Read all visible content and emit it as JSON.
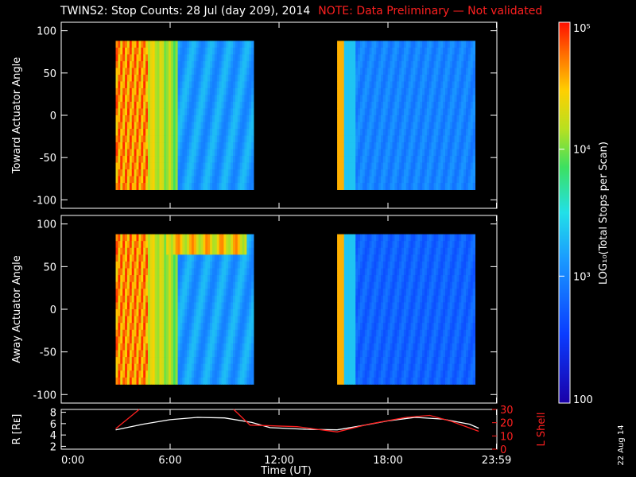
{
  "title": {
    "main": "TWINS2: Stop Counts: 28 Jul (day 209), 2014",
    "note": "NOTE: Data Preliminary — Not validated"
  },
  "panels": {
    "top": {
      "ylabel": "Toward Actuator Angle"
    },
    "middle": {
      "ylabel": "Away Actuator Angle"
    },
    "bottom": {
      "ylabel_left": "R [Rᴇ]",
      "ylabel_right": "L Shell"
    }
  },
  "colorbar": {
    "label": "LOG₁₀(Total Stops per Scan)",
    "tick_labels": [
      "10⁵",
      "10⁴",
      "10³",
      "100"
    ]
  },
  "xaxis": {
    "label": "Time (UT)",
    "tick_labels": [
      "0:00",
      "6:00",
      "12:00",
      "18:00",
      "23:59"
    ]
  },
  "date_stamp": "22 Aug 14",
  "colors": {
    "title": "#ffffff",
    "note": "#ff2020",
    "r_line": "#ffffff",
    "lshell_line": "#ff2020"
  },
  "chart_data": [
    {
      "type": "heatmap",
      "name": "toward",
      "ylabel": "Toward Actuator Angle",
      "ylim": [
        -110,
        110
      ],
      "yticks": [
        100,
        50,
        0,
        -50,
        -100
      ],
      "xlim": [
        0,
        24
      ],
      "x_ticks": [
        "0:00",
        "6:00",
        "12:00",
        "18:00",
        "23:59"
      ],
      "scan_blocks_hours": [
        [
          3.0,
          10.6
        ],
        [
          15.2,
          22.8
        ]
      ],
      "angle_range": [
        -88,
        88
      ],
      "colorbar_log_range": [
        2,
        5
      ]
    },
    {
      "type": "heatmap",
      "name": "away",
      "ylabel": "Away Actuator Angle",
      "ylim": [
        -110,
        110
      ],
      "yticks": [
        100,
        50,
        0,
        -50,
        -100
      ],
      "xlim": [
        0,
        24
      ],
      "x_ticks": [
        "0:00",
        "6:00",
        "12:00",
        "18:00",
        "23:59"
      ],
      "scan_blocks_hours": [
        [
          3.0,
          10.6
        ],
        [
          15.2,
          22.8
        ]
      ],
      "angle_range": [
        -88,
        88
      ],
      "colorbar_log_range": [
        2,
        5
      ]
    },
    {
      "type": "line",
      "name": "ephemeris",
      "xlim": [
        0,
        24
      ],
      "left_axis": {
        "label": "R [Rᴇ]",
        "ylim": [
          1.5,
          8.5
        ],
        "ticks": [
          2,
          4,
          6,
          8
        ]
      },
      "right_axis": {
        "label": "L Shell",
        "ylim": [
          0,
          30
        ],
        "ticks": [
          0,
          10,
          20,
          30
        ]
      },
      "series": [
        {
          "label": "R",
          "axis": "left",
          "points": [
            [
              3.0,
              4.9
            ],
            [
              4.5,
              5.9
            ],
            [
              6.0,
              6.7
            ],
            [
              7.5,
              7.1
            ],
            [
              9.0,
              7.0
            ],
            [
              10.5,
              6.2
            ],
            [
              11.5,
              5.3
            ],
            [
              13.5,
              5.0
            ],
            [
              15.2,
              4.9
            ],
            [
              16.5,
              5.6
            ],
            [
              18.0,
              6.5
            ],
            [
              19.5,
              7.1
            ],
            [
              21.0,
              6.8
            ],
            [
              22.5,
              5.9
            ],
            [
              23.0,
              5.2
            ]
          ]
        },
        {
          "label": "L Shell",
          "axis": "right",
          "points": [
            [
              3.0,
              15.5
            ],
            [
              4.3,
              30.0
            ],
            null,
            [
              9.5,
              30.0
            ],
            [
              10.4,
              18.2
            ],
            [
              13.0,
              17.0
            ],
            [
              15.2,
              13.0
            ],
            [
              17.0,
              19.0
            ],
            [
              19.0,
              24.0
            ],
            [
              20.3,
              25.5
            ],
            [
              21.5,
              21.0
            ],
            [
              23.0,
              13.5
            ]
          ]
        }
      ]
    }
  ]
}
